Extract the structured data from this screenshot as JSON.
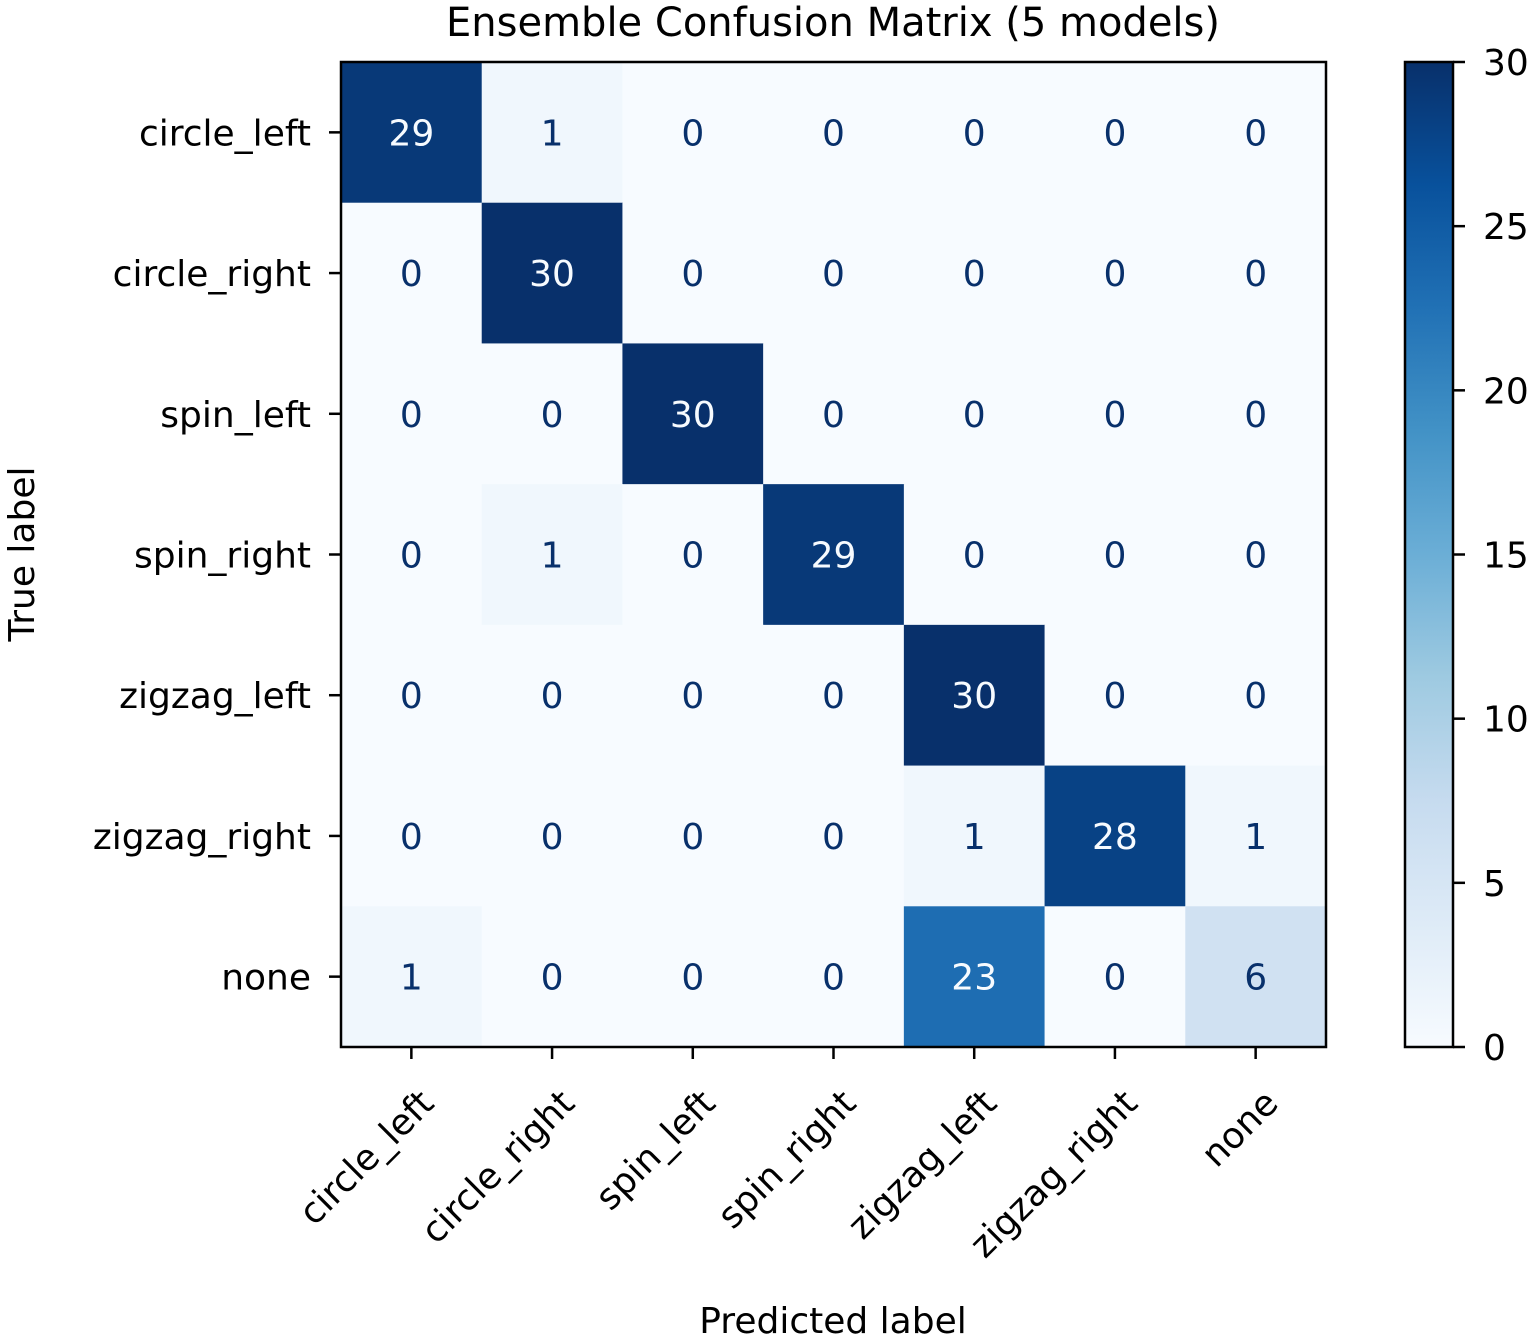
{
  "chart_data": {
    "type": "heatmap",
    "title": "Ensemble Confusion Matrix (5 models)",
    "xlabel": "Predicted label",
    "ylabel": "True label",
    "x_categories": [
      "circle_left",
      "circle_right",
      "spin_left",
      "spin_right",
      "zigzag_left",
      "zigzag_right",
      "none"
    ],
    "y_categories": [
      "circle_left",
      "circle_right",
      "spin_left",
      "spin_right",
      "zigzag_left",
      "zigzag_right",
      "none"
    ],
    "values": [
      [
        29,
        1,
        0,
        0,
        0,
        0,
        0
      ],
      [
        0,
        30,
        0,
        0,
        0,
        0,
        0
      ],
      [
        0,
        0,
        30,
        0,
        0,
        0,
        0
      ],
      [
        0,
        1,
        0,
        29,
        0,
        0,
        0
      ],
      [
        0,
        0,
        0,
        0,
        30,
        0,
        0
      ],
      [
        0,
        0,
        0,
        0,
        1,
        28,
        1
      ],
      [
        1,
        0,
        0,
        0,
        23,
        0,
        6
      ]
    ],
    "colormap": "Blues",
    "color_min": "#f7fbff",
    "color_max": "#08306b",
    "colorbar": {
      "range": [
        0,
        30
      ],
      "ticks": [
        0,
        5,
        10,
        15,
        20,
        25,
        30
      ]
    },
    "grid": false
  }
}
